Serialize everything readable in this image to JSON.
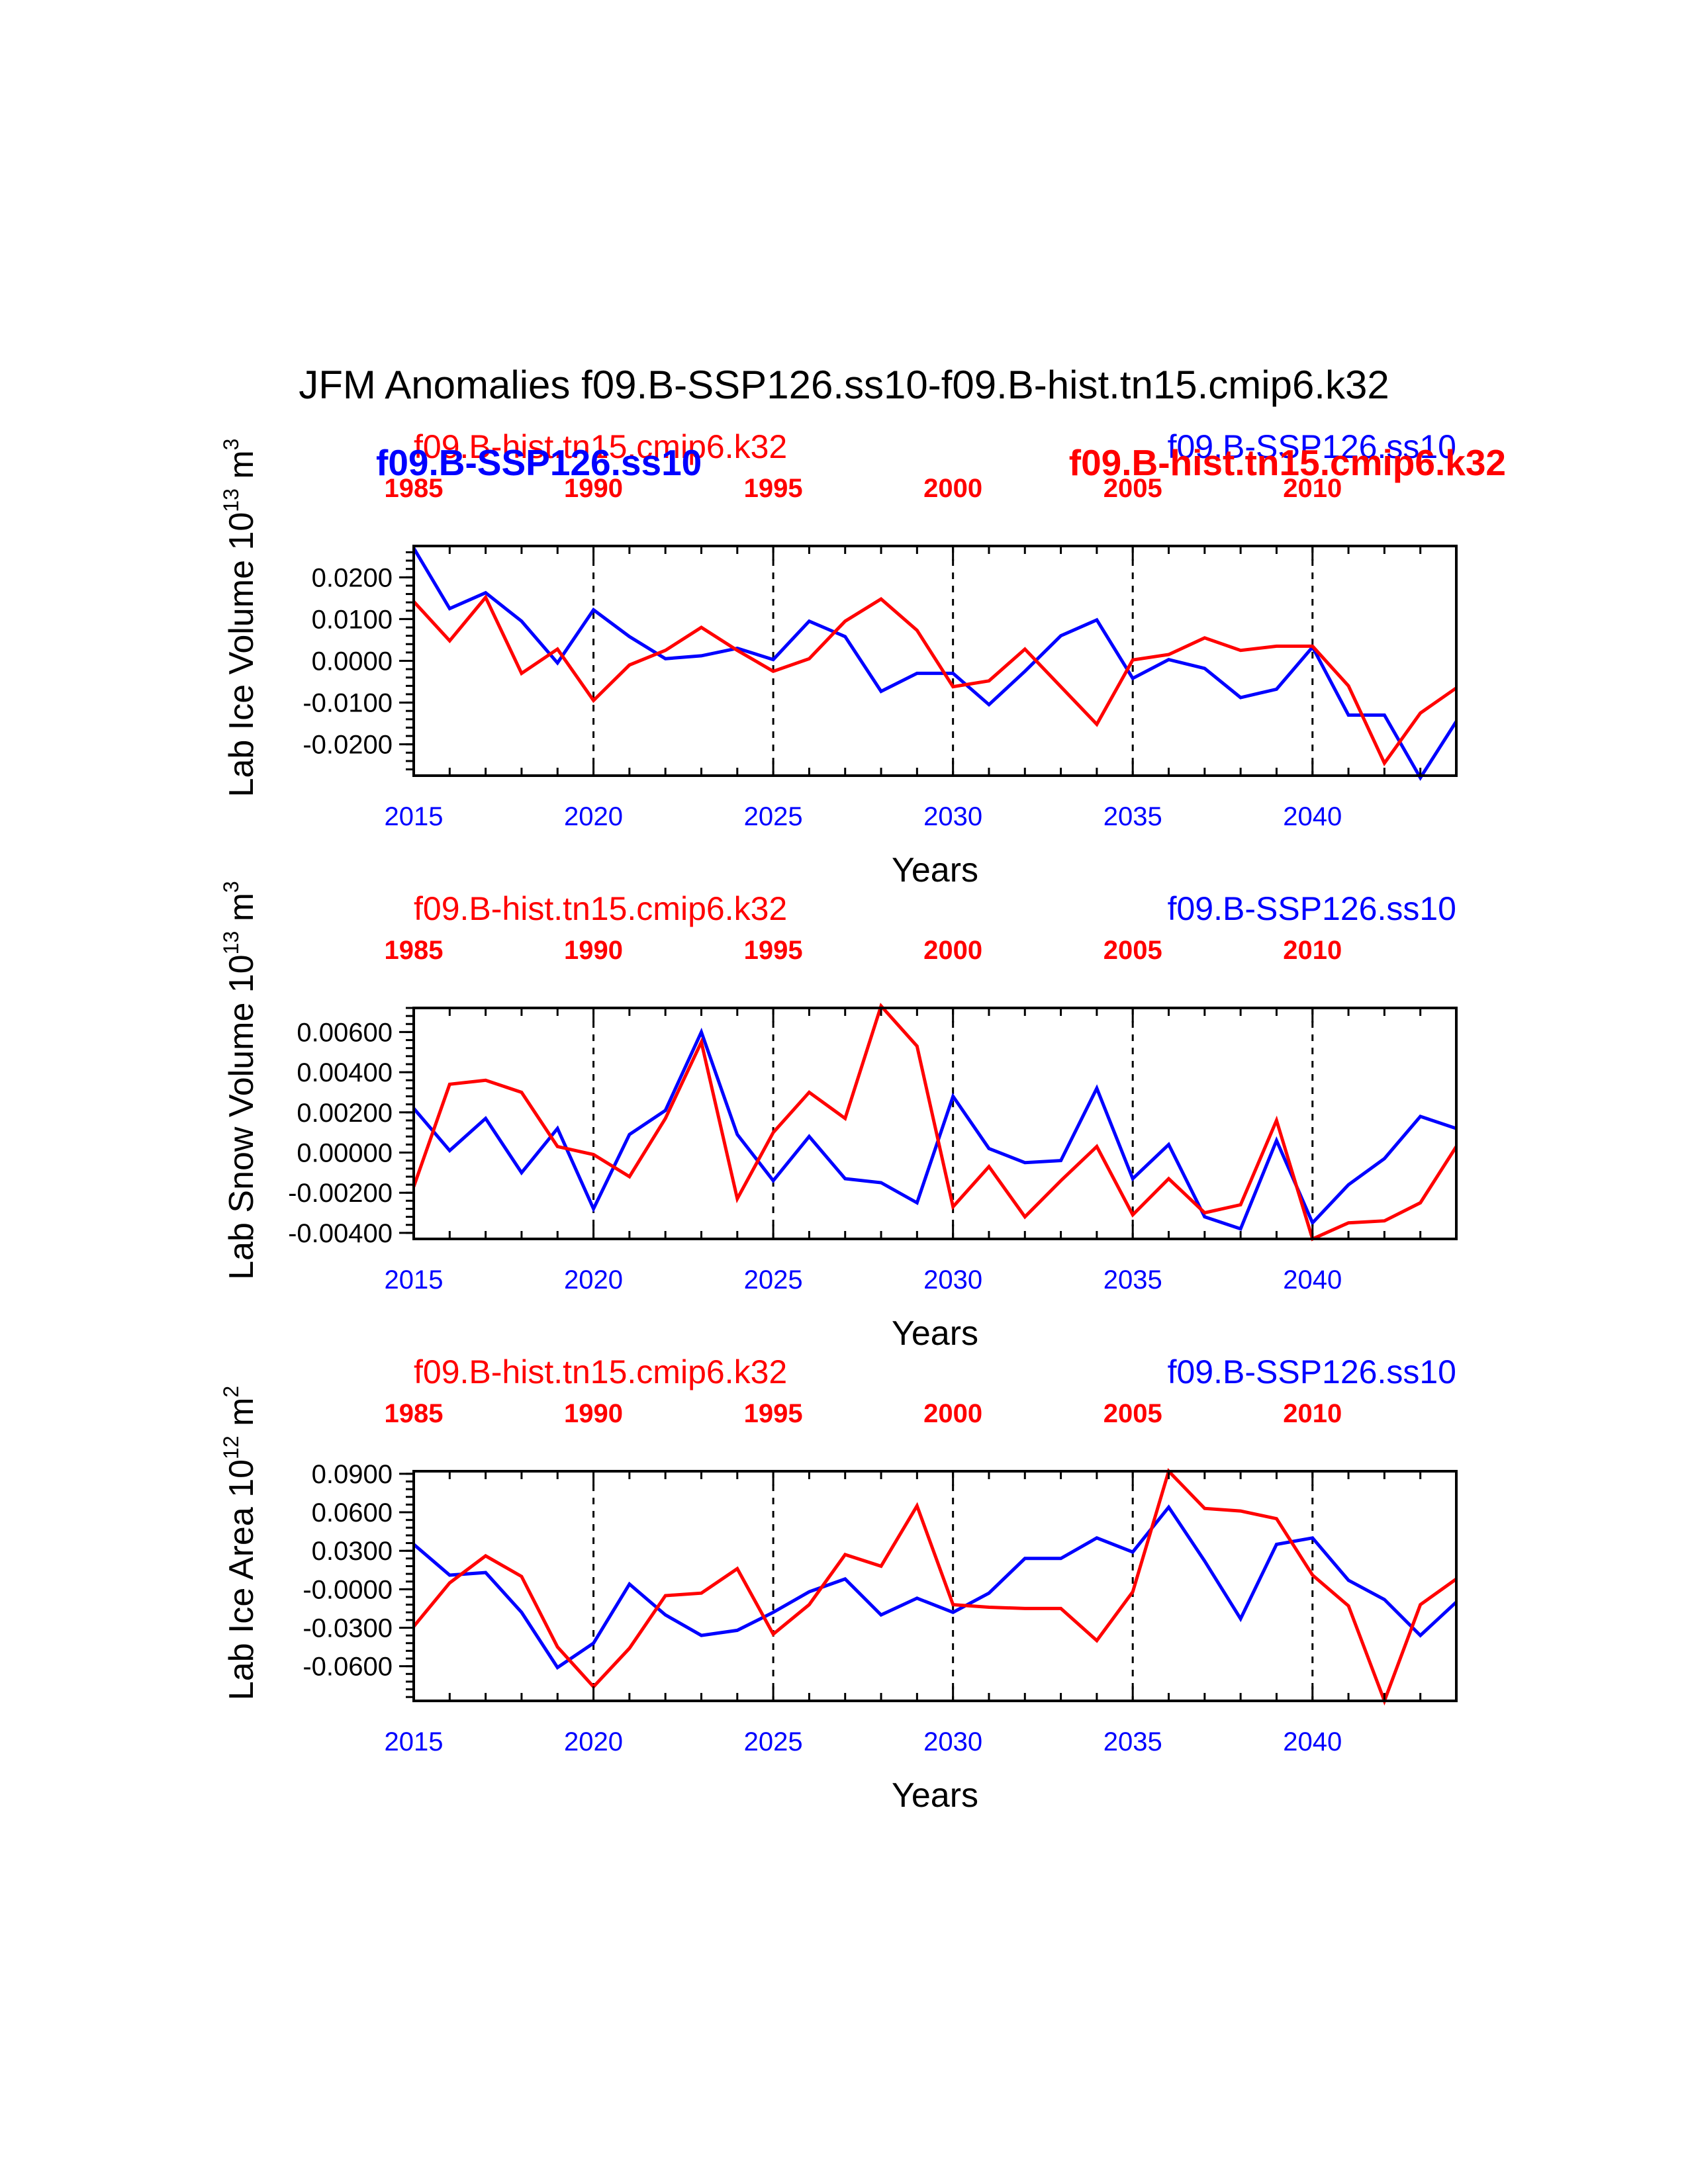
{
  "title": "JFM Anomalies f09.B-SSP126.ss10-f09.B-hist.tn15.cmip6.k32",
  "colors": {
    "ssp": "#0000ff",
    "hist": "#ff0000",
    "axis": "#000000"
  },
  "chart_data": [
    {
      "type": "line",
      "ylabel_main": "Lab Ice Volume 10",
      "ylabel_exp": "13",
      "ylabel_unit": " m",
      "ylabel_unit_exp": "3",
      "xlabel": "Years",
      "xlim": [
        2015,
        2044
      ],
      "ylim": [
        -0.0275,
        0.0275
      ],
      "yticks": [
        0.02,
        0.01,
        0.0,
        -0.01,
        -0.02
      ],
      "ytick_labels": [
        "0.0200",
        "0.0100",
        "0.0000",
        "-0.0100",
        "-0.0200"
      ],
      "xticks_bottom": [
        "2015",
        "2020",
        "2025",
        "2030",
        "2035",
        "2040"
      ],
      "xticks_top": [
        "1985",
        "1990",
        "1995",
        "2000",
        "2005",
        "2010"
      ],
      "legend": {
        "hist_top": "f09.B-hist.tn15.cmip6.k32",
        "ssp_bold": "f09.B-SSP126.ss10",
        "ssp_top": "f09.B-SSP126.ss10",
        "hist_bold": "f09.B-hist.tn15.cmip6.k32"
      },
      "x": [
        2015,
        2016,
        2017,
        2018,
        2019,
        2020,
        2021,
        2022,
        2023,
        2024,
        2025,
        2026,
        2027,
        2028,
        2029,
        2030,
        2031,
        2032,
        2033,
        2034,
        2035,
        2036,
        2037,
        2038,
        2039,
        2040,
        2041,
        2042,
        2043,
        2044
      ],
      "series": [
        {
          "name": "f09.B-SSP126.ss10",
          "color": "#0000ff",
          "values": [
            0.027,
            0.0125,
            0.0163,
            0.0095,
            -0.0005,
            0.0122,
            0.0058,
            0.0005,
            0.0012,
            0.003,
            0.0003,
            0.0095,
            0.0058,
            -0.0073,
            -0.003,
            -0.003,
            -0.0105,
            -0.0025,
            0.006,
            0.0098,
            -0.0042,
            0.0003,
            -0.0018,
            -0.0088,
            -0.0068,
            0.0033,
            -0.013,
            -0.013,
            -0.028,
            -0.0145
          ]
        },
        {
          "name": "f09.B-hist.tn15.cmip6.k32",
          "color": "#ff0000",
          "values": [
            0.0142,
            0.0048,
            0.0152,
            -0.003,
            0.0028,
            -0.0095,
            -0.001,
            0.0025,
            0.008,
            0.0025,
            -0.0025,
            0.0005,
            0.0095,
            0.0148,
            0.0073,
            -0.0062,
            -0.0048,
            0.0028,
            -0.0062,
            -0.0152,
            0.0002,
            0.0015,
            0.0055,
            0.0025,
            0.0035,
            0.0035,
            -0.006,
            -0.0245,
            -0.0125,
            -0.0065
          ]
        }
      ]
    },
    {
      "type": "line",
      "ylabel_main": "Lab Snow Volume 10",
      "ylabel_exp": "13",
      "ylabel_unit": " m",
      "ylabel_unit_exp": "3",
      "xlabel": "Years",
      "xlim": [
        2015,
        2044
      ],
      "ylim": [
        -0.0043,
        0.0072
      ],
      "yticks": [
        0.006,
        0.004,
        0.002,
        0.0,
        -0.002,
        -0.004
      ],
      "ytick_labels": [
        "0.00600",
        "0.00400",
        "0.00200",
        "0.00000",
        "-0.00200",
        "-0.00400"
      ],
      "xticks_bottom": [
        "2015",
        "2020",
        "2025",
        "2030",
        "2035",
        "2040"
      ],
      "xticks_top": [
        "1985",
        "1990",
        "1995",
        "2000",
        "2005",
        "2010"
      ],
      "legend": {
        "hist_top": "f09.B-hist.tn15.cmip6.k32",
        "ssp_top": "f09.B-SSP126.ss10"
      },
      "x": [
        2015,
        2016,
        2017,
        2018,
        2019,
        2020,
        2021,
        2022,
        2023,
        2024,
        2025,
        2026,
        2027,
        2028,
        2029,
        2030,
        2031,
        2032,
        2033,
        2034,
        2035,
        2036,
        2037,
        2038,
        2039,
        2040,
        2041,
        2042,
        2043,
        2044
      ],
      "series": [
        {
          "name": "f09.B-SSP126.ss10",
          "color": "#0000ff",
          "values": [
            0.0022,
            0.0001,
            0.0017,
            -0.001,
            0.0012,
            -0.0028,
            0.0009,
            0.0021,
            0.006,
            0.0009,
            -0.0014,
            0.0008,
            -0.0013,
            -0.0015,
            -0.0025,
            0.0028,
            0.0002,
            -0.0005,
            -0.0004,
            0.0032,
            -0.0013,
            0.0004,
            -0.0032,
            -0.0038,
            0.0006,
            -0.0035,
            -0.0016,
            -0.0003,
            0.0018,
            0.0012
          ]
        },
        {
          "name": "f09.B-hist.tn15.cmip6.k32",
          "color": "#ff0000",
          "values": [
            -0.0017,
            0.0034,
            0.0036,
            0.003,
            0.0003,
            -0.0001,
            -0.0012,
            0.0017,
            0.0055,
            -0.0023,
            0.001,
            0.003,
            0.0017,
            0.0073,
            0.0053,
            -0.0027,
            -0.0007,
            -0.0032,
            -0.0014,
            0.0003,
            -0.0031,
            -0.0013,
            -0.003,
            -0.0026,
            0.0016,
            -0.0043,
            -0.0035,
            -0.0034,
            -0.0025,
            0.0003
          ]
        }
      ]
    },
    {
      "type": "line",
      "ylabel_main": "Lab Ice Area 10",
      "ylabel_exp": "12",
      "ylabel_unit": " m",
      "ylabel_unit_exp": "2",
      "xlabel": "Years",
      "xlim": [
        2015,
        2044
      ],
      "ylim": [
        -0.087,
        0.092
      ],
      "yticks": [
        0.09,
        0.06,
        0.03,
        0.0,
        -0.03,
        -0.06
      ],
      "ytick_labels": [
        "0.0900",
        "0.0600",
        "0.0300",
        "-0.0000",
        "-0.0300",
        "-0.0600"
      ],
      "xticks_bottom": [
        "2015",
        "2020",
        "2025",
        "2030",
        "2035",
        "2040"
      ],
      "xticks_top": [
        "1985",
        "1990",
        "1995",
        "2000",
        "2005",
        "2010"
      ],
      "legend": {
        "hist_top": "f09.B-hist.tn15.cmip6.k32",
        "ssp_top": "f09.B-SSP126.ss10"
      },
      "x": [
        2015,
        2016,
        2017,
        2018,
        2019,
        2020,
        2021,
        2022,
        2023,
        2024,
        2025,
        2026,
        2027,
        2028,
        2029,
        2030,
        2031,
        2032,
        2033,
        2034,
        2035,
        2036,
        2037,
        2038,
        2039,
        2040,
        2041,
        2042,
        2043,
        2044
      ],
      "series": [
        {
          "name": "f09.B-SSP126.ss10",
          "color": "#0000ff",
          "values": [
            0.035,
            0.011,
            0.013,
            -0.018,
            -0.061,
            -0.042,
            0.004,
            -0.02,
            -0.036,
            -0.032,
            -0.018,
            -0.002,
            0.008,
            -0.02,
            -0.007,
            -0.018,
            -0.003,
            0.024,
            0.024,
            0.04,
            0.029,
            0.064,
            0.022,
            -0.023,
            0.035,
            0.04,
            0.007,
            -0.008,
            -0.036,
            -0.01
          ]
        },
        {
          "name": "f09.B-hist.tn15.cmip6.k32",
          "color": "#ff0000",
          "values": [
            -0.029,
            0.005,
            0.026,
            0.01,
            -0.045,
            -0.076,
            -0.046,
            -0.005,
            -0.003,
            0.016,
            -0.035,
            -0.012,
            0.027,
            0.018,
            0.065,
            -0.012,
            -0.014,
            -0.015,
            -0.015,
            -0.04,
            -0.002,
            0.092,
            0.063,
            0.061,
            0.055,
            0.011,
            -0.013,
            -0.087,
            -0.012,
            0.008
          ]
        }
      ]
    }
  ]
}
